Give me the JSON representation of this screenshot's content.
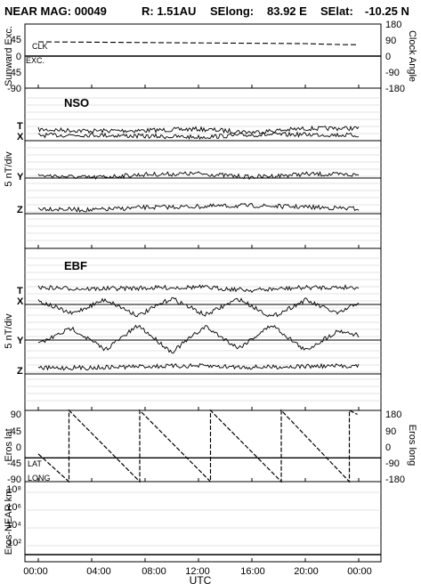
{
  "header": {
    "mission_label": "NEAR MAG: 00049",
    "range_label": "R: 1.51AU",
    "selong_label": "SElong:",
    "selong_value": "83.92 E",
    "selat_label": "SElat:",
    "selat_value": "-10.25 N"
  },
  "colors": {
    "ink": "#000000",
    "gridline": "#c8c8c8",
    "background": "#ffffff"
  },
  "chart_data": [
    {
      "panel": "sunward-exc-clock",
      "type": "line",
      "ylabel_left": "Sunward Exc.",
      "ylabel_right": "Clock Angle",
      "yticks_left": [
        "45",
        "0",
        "-45",
        "-90"
      ],
      "yticks_right": [
        "180",
        "90",
        "0",
        "-90",
        "-180"
      ],
      "ylim_left": [
        -90,
        90
      ],
      "ylim_right": [
        -180,
        180
      ],
      "series": [
        {
          "name": "CLK",
          "style": "dashed",
          "x": [
            0,
            4,
            8,
            12,
            16,
            20,
            23,
            24
          ],
          "y": [
            40,
            39,
            38,
            37,
            36,
            35,
            32,
            32
          ]
        },
        {
          "name": "EXC.",
          "style": "solid",
          "x": [
            0,
            24
          ],
          "y": [
            0,
            0
          ]
        }
      ]
    },
    {
      "panel": "nso",
      "type": "line",
      "tag": "NSO",
      "ylabel": "5 nT/div",
      "components": [
        "T",
        "X",
        "Y",
        "Z"
      ],
      "series": [
        {
          "name": "T",
          "x": [
            0,
            4,
            8,
            12,
            16,
            20,
            24
          ],
          "y": [
            1.3,
            1.0,
            1.1,
            1.4,
            0.7,
            1.5,
            1.6
          ]
        },
        {
          "name": "X",
          "x": [
            0,
            4,
            8,
            12,
            16,
            20,
            24
          ],
          "y": [
            0.8,
            0.9,
            0.6,
            0.4,
            0.9,
            1.0,
            0.8
          ]
        },
        {
          "name": "Y",
          "x": [
            0,
            4,
            8,
            12,
            16,
            20,
            24
          ],
          "y": [
            0.2,
            -0.3,
            0.4,
            0.6,
            -0.2,
            0.5,
            0.3
          ]
        },
        {
          "name": "Z",
          "x": [
            0,
            4,
            8,
            12,
            16,
            20,
            24
          ],
          "y": [
            0.4,
            0.0,
            0.6,
            0.8,
            1.0,
            0.7,
            0.3
          ]
        }
      ]
    },
    {
      "panel": "ebf",
      "type": "line",
      "tag": "EBF",
      "ylabel": "5 nT/div",
      "components": [
        "T",
        "X",
        "Y",
        "Z"
      ],
      "series": [
        {
          "name": "T",
          "x": [
            0,
            4,
            8,
            12,
            16,
            20,
            24
          ],
          "y": [
            1.4,
            1.1,
            1.3,
            1.5,
            0.8,
            1.4,
            1.5
          ]
        },
        {
          "name": "X",
          "x": [
            0,
            2.5,
            5,
            7.5,
            10,
            12.5,
            15,
            17.5,
            20,
            22.5,
            24
          ],
          "y": [
            0.6,
            -1.5,
            0.8,
            -1.8,
            1.0,
            -1.7,
            0.9,
            -2.0,
            0.7,
            -1.5,
            0.4
          ]
        },
        {
          "name": "Y",
          "x": [
            0,
            2.5,
            5,
            7.5,
            10,
            12.5,
            15,
            17.5,
            20,
            22.5,
            24
          ],
          "y": [
            -0.5,
            1.5,
            -1.2,
            1.8,
            -1.5,
            1.7,
            -1.0,
            1.9,
            -1.3,
            1.2,
            0.6
          ]
        },
        {
          "name": "Z",
          "x": [
            0,
            4,
            8,
            12,
            16,
            20,
            24
          ],
          "y": [
            0.5,
            0.6,
            0.9,
            1.0,
            0.7,
            0.9,
            1.0
          ]
        }
      ]
    },
    {
      "panel": "eros-lat-long",
      "type": "line",
      "ylabel_left": "Eros lat",
      "ylabel_right": "Eros long",
      "yticks_left": [
        "90",
        "45",
        "0",
        "-45",
        "-90"
      ],
      "yticks_right": [
        "180",
        "90",
        "0",
        "-90",
        "-180"
      ],
      "ylim_left": [
        -90,
        90
      ],
      "ylim_right": [
        -180,
        180
      ],
      "series": [
        {
          "name": "LAT",
          "style": "solid",
          "x": [
            0,
            24
          ],
          "y": [
            -30,
            -30
          ]
        },
        {
          "name": "LONG",
          "style": "dashed",
          "x": [
            0,
            2.3,
            2.3,
            7.6,
            7.6,
            12.9,
            12.9,
            18.2,
            18.2,
            23.3,
            23.3,
            23.9
          ],
          "y": [
            -40,
            -180,
            180,
            -180,
            180,
            -180,
            180,
            -180,
            180,
            -180,
            180,
            160
          ]
        }
      ]
    },
    {
      "panel": "eros-near-distance",
      "type": "line",
      "ylabel": "Eros-NEAR km",
      "yscale": "log",
      "yticks": [
        "10⁸",
        "10⁶",
        "10⁴",
        "10²"
      ],
      "ylim": [
        10,
        100000000
      ],
      "series": [
        {
          "x": [
            0,
            24
          ],
          "y": [
            100,
            100
          ]
        }
      ]
    }
  ],
  "x_axis": {
    "ticks": [
      "00:00",
      "04:00",
      "08:00",
      "12:00",
      "16:00",
      "20:00",
      "00:00"
    ],
    "tick_hours": [
      0,
      4,
      8,
      12,
      16,
      20,
      24
    ],
    "label": "UTC"
  },
  "labels": {
    "clk": "CLK",
    "exc": "EXC.",
    "lat": "LAT",
    "long": "LONG",
    "nso_tag": "NSO",
    "ebf_tag": "EBF",
    "comp_t": "T",
    "comp_x": "X",
    "comp_y": "Y",
    "comp_z": "Z",
    "nt_div": "5 nT/div",
    "sunward_exc": "Sunward Exc.",
    "clock_angle": "Clock Angle",
    "eros_lat": "Eros lat",
    "eros_long": "Eros long",
    "eros_near_km": "Eros-NEAR km"
  }
}
